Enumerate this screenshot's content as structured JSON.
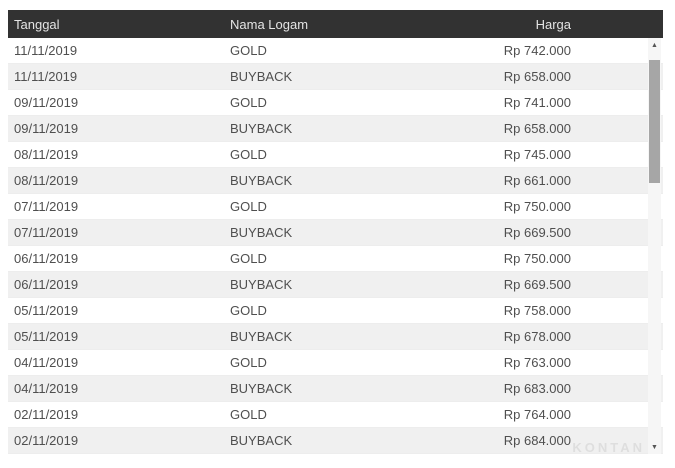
{
  "table": {
    "columns": [
      {
        "label": "Tanggal"
      },
      {
        "label": "Nama Logam"
      },
      {
        "label": "Harga"
      }
    ],
    "rows": [
      {
        "tanggal": "11/11/2019",
        "nama_logam": "GOLD",
        "harga": "Rp 742.000"
      },
      {
        "tanggal": "11/11/2019",
        "nama_logam": "BUYBACK",
        "harga": "Rp 658.000"
      },
      {
        "tanggal": "09/11/2019",
        "nama_logam": "GOLD",
        "harga": "Rp 741.000"
      },
      {
        "tanggal": "09/11/2019",
        "nama_logam": "BUYBACK",
        "harga": "Rp 658.000"
      },
      {
        "tanggal": "08/11/2019",
        "nama_logam": "GOLD",
        "harga": "Rp 745.000"
      },
      {
        "tanggal": "08/11/2019",
        "nama_logam": "BUYBACK",
        "harga": "Rp 661.000"
      },
      {
        "tanggal": "07/11/2019",
        "nama_logam": "GOLD",
        "harga": "Rp 750.000"
      },
      {
        "tanggal": "07/11/2019",
        "nama_logam": "BUYBACK",
        "harga": "Rp 669.500"
      },
      {
        "tanggal": "06/11/2019",
        "nama_logam": "GOLD",
        "harga": "Rp 750.000"
      },
      {
        "tanggal": "06/11/2019",
        "nama_logam": "BUYBACK",
        "harga": "Rp 669.500"
      },
      {
        "tanggal": "05/11/2019",
        "nama_logam": "GOLD",
        "harga": "Rp 758.000"
      },
      {
        "tanggal": "05/11/2019",
        "nama_logam": "BUYBACK",
        "harga": "Rp 678.000"
      },
      {
        "tanggal": "04/11/2019",
        "nama_logam": "GOLD",
        "harga": "Rp 763.000"
      },
      {
        "tanggal": "04/11/2019",
        "nama_logam": "BUYBACK",
        "harga": "Rp 683.000"
      },
      {
        "tanggal": "02/11/2019",
        "nama_logam": "GOLD",
        "harga": "Rp 764.000"
      },
      {
        "tanggal": "02/11/2019",
        "nama_logam": "BUYBACK",
        "harga": "Rp 684.000"
      }
    ]
  },
  "scrollbar": {
    "up_glyph": "▲",
    "down_glyph": "▼"
  },
  "watermark": {
    "text": "KONTAN"
  },
  "colors": {
    "header_bg": "#323232",
    "header_text": "#e4e4e4",
    "row_bg": "#ffffff",
    "row_alt_bg": "#f0f0f0",
    "cell_text": "#4f4f4f",
    "scrollbar_thumb": "#a6a6a6",
    "scrollbar_track": "#f6f6f6"
  }
}
